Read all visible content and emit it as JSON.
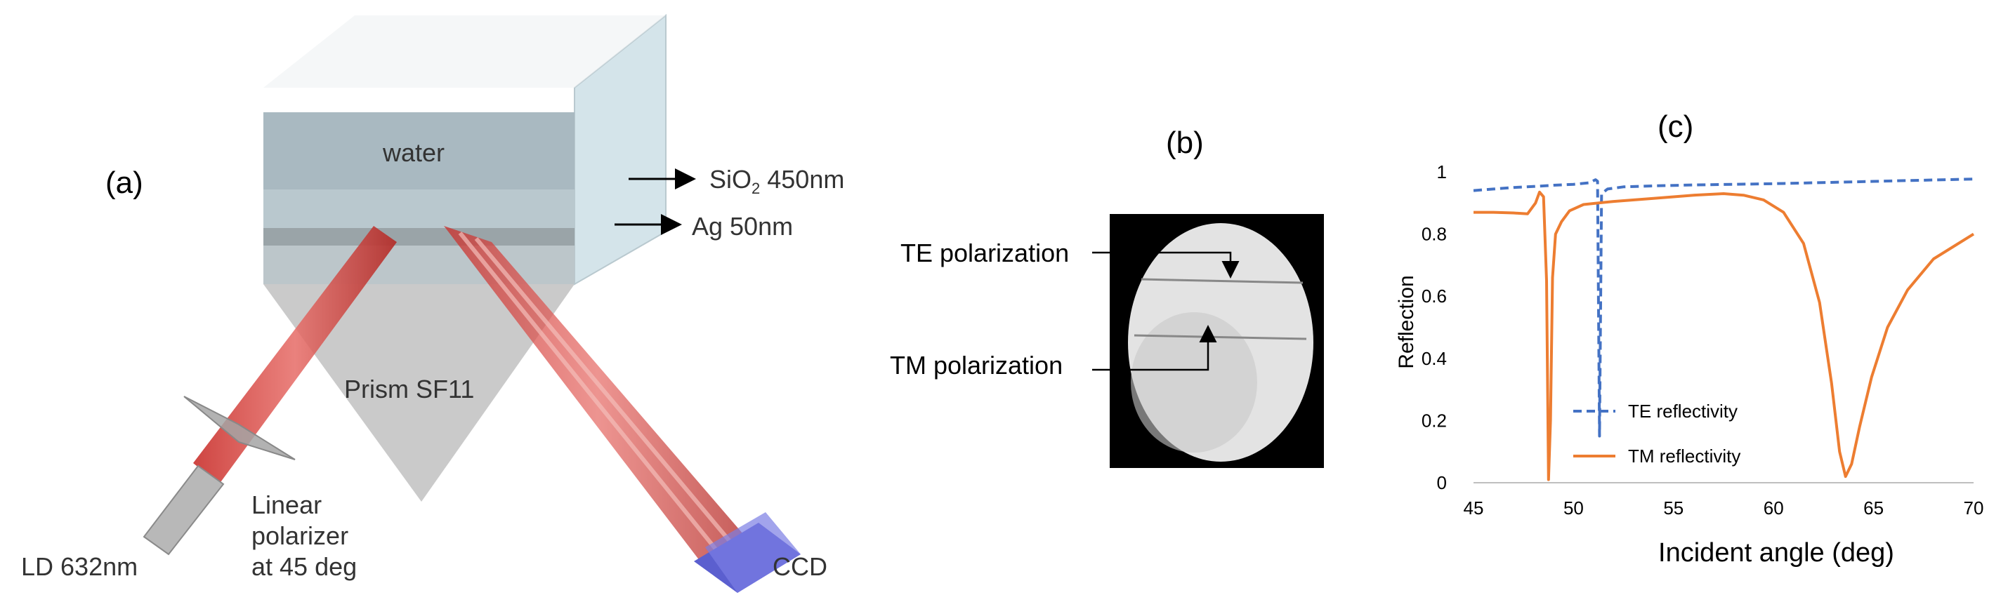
{
  "panel_a": {
    "panel_label": "(a)",
    "water_label": "water",
    "sio2_label": "SiO",
    "sio2_sub": "2",
    "sio2_thickness": " 450nm",
    "ag_label": "Ag 50nm",
    "prism_label": "Prism SF11",
    "laser_label": "LD 632nm",
    "polarizer_line1": "Linear",
    "polarizer_line2": "polarizer",
    "polarizer_line3": "at 45 deg",
    "ccd_label": "CCD"
  },
  "panel_b": {
    "panel_label": "(b)",
    "te_label": "TE polarization",
    "tm_label": "TM polarization"
  },
  "panel_c": {
    "panel_label": "(c)"
  },
  "chart_data": {
    "type": "line",
    "title": "",
    "xlabel": "Incident angle (deg)",
    "ylabel": "Reflection",
    "xlim": [
      45,
      70
    ],
    "ylim": [
      0,
      1
    ],
    "xticks": [
      45,
      50,
      55,
      60,
      65,
      70
    ],
    "ytick_labels": [
      "0",
      "0.2",
      "0.4",
      "0.6",
      "0.8",
      "1"
    ],
    "legend_position": "lower-left",
    "series": [
      {
        "name": "TE reflectivity",
        "style": "dashed",
        "color": "#4472C4",
        "x": [
          45,
          46,
          47,
          48,
          49,
          50,
          50.8,
          51.1,
          51.2,
          51.3,
          51.4,
          51.7,
          52.5,
          54,
          56,
          58,
          60,
          62,
          64,
          66,
          68,
          70
        ],
        "y": [
          0.94,
          0.945,
          0.95,
          0.953,
          0.957,
          0.96,
          0.965,
          0.975,
          0.97,
          0.15,
          0.93,
          0.945,
          0.952,
          0.955,
          0.958,
          0.96,
          0.962,
          0.965,
          0.968,
          0.971,
          0.974,
          0.977
        ]
      },
      {
        "name": "TM reflectivity",
        "style": "solid",
        "color": "#ED7D31",
        "x": [
          45,
          46,
          47,
          47.7,
          48.1,
          48.3,
          48.5,
          48.65,
          48.75,
          48.85,
          48.95,
          49.1,
          49.4,
          49.8,
          50.5,
          52,
          54,
          56,
          57.5,
          58.5,
          59.5,
          60.5,
          61.5,
          62.3,
          62.9,
          63.3,
          63.6,
          63.9,
          64.3,
          64.9,
          65.7,
          66.7,
          68,
          70
        ],
        "y": [
          0.87,
          0.87,
          0.868,
          0.865,
          0.9,
          0.935,
          0.92,
          0.65,
          0.01,
          0.2,
          0.66,
          0.8,
          0.84,
          0.875,
          0.895,
          0.905,
          0.915,
          0.925,
          0.93,
          0.925,
          0.91,
          0.87,
          0.77,
          0.58,
          0.32,
          0.1,
          0.02,
          0.06,
          0.18,
          0.34,
          0.5,
          0.62,
          0.72,
          0.8
        ]
      }
    ]
  }
}
